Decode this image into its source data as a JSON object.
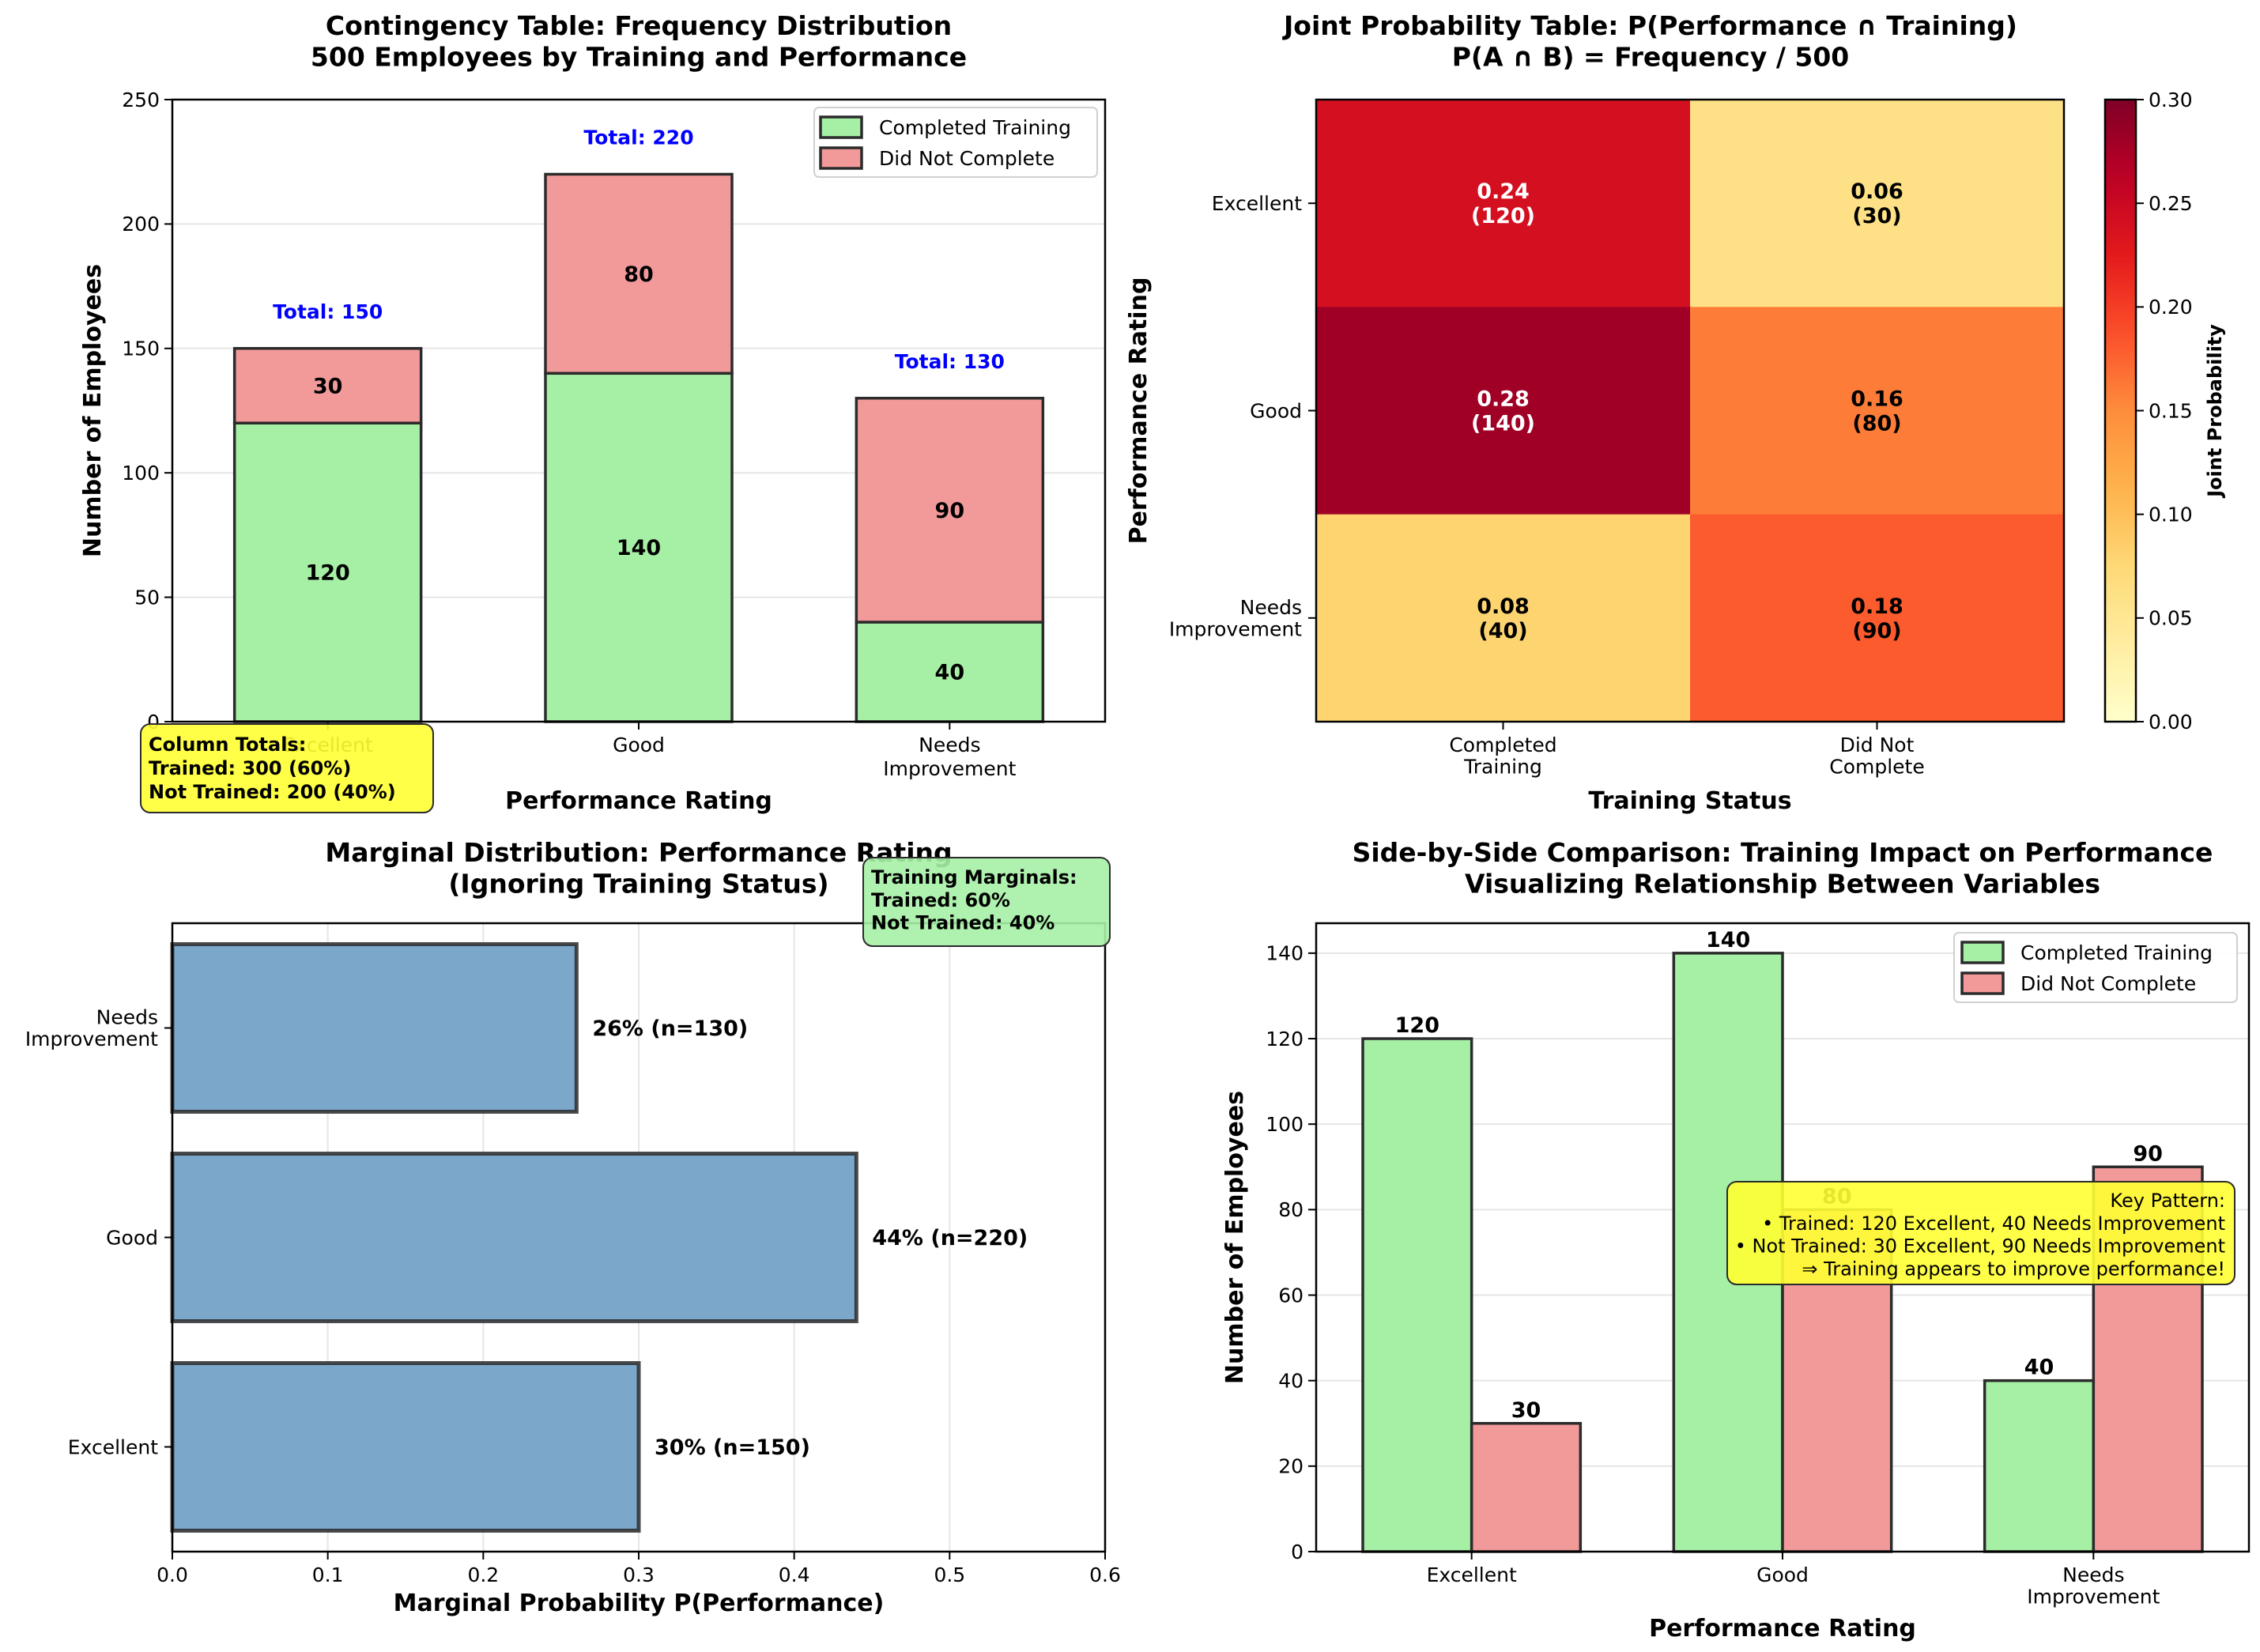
{
  "colors": {
    "trained": "#a6f0a6",
    "not_trained": "#f29a9a",
    "marginal_bar": "#7ba7cb",
    "edge": "#2b2b2b",
    "total_text": "#0000ff",
    "yellow_box": "#ffff33",
    "green_box": "#a6f0a6",
    "grid": "#e6e6e6"
  },
  "chart_data": [
    {
      "id": "contingency",
      "type": "bar",
      "stacked": true,
      "title": "Contingency Table: Frequency Distribution\n500 Employees by Training and Performance",
      "xlabel": "Performance Rating",
      "ylabel": "Number of Employees",
      "categories": [
        "Excellent",
        "Good",
        "Needs\nImprovement"
      ],
      "series": [
        {
          "name": "Completed Training",
          "values": [
            120,
            140,
            40
          ]
        },
        {
          "name": "Did Not Complete",
          "values": [
            30,
            80,
            90
          ]
        }
      ],
      "totals": [
        150,
        220,
        130
      ],
      "total_labels": [
        "Total: 150",
        "Total: 220",
        "Total: 130"
      ],
      "ylim": [
        0,
        250
      ],
      "yticks": [
        0,
        50,
        100,
        150,
        200,
        250
      ],
      "grid": "y",
      "legend": "top-right",
      "annotation": "Column Totals:\nTrained: 300 (60%)\nNot Trained: 200 (40%)"
    },
    {
      "id": "joint",
      "type": "heatmap",
      "title": "Joint Probability Table: P(Performance ∩ Training)\nP(A ∩ B) = Frequency / 500",
      "xlabel": "Training Status",
      "ylabel": "Performance Rating",
      "x_categories": [
        "Completed\nTraining",
        "Did Not\nComplete"
      ],
      "y_categories": [
        "Excellent",
        "Good",
        "Needs\nImprovement"
      ],
      "values": [
        [
          0.24,
          0.06
        ],
        [
          0.28,
          0.16
        ],
        [
          0.08,
          0.18
        ]
      ],
      "counts": [
        [
          120,
          30
        ],
        [
          140,
          80
        ],
        [
          40,
          90
        ]
      ],
      "colormap": "YlOrRd",
      "vmin": 0.0,
      "vmax": 0.3,
      "colorbar_label": "Joint Probability",
      "colorbar_ticks": [
        "0.00",
        "0.05",
        "0.10",
        "0.15",
        "0.20",
        "0.25",
        "0.30"
      ]
    },
    {
      "id": "marginal",
      "type": "bar",
      "orientation": "horizontal",
      "title": "Marginal Distribution: Performance Rating\n(Ignoring Training Status)",
      "xlabel": "Marginal Probability P(Performance)",
      "ylabel": "",
      "categories": [
        "Excellent",
        "Good",
        "Needs\nImprovement"
      ],
      "values": [
        0.3,
        0.44,
        0.26
      ],
      "value_labels": [
        "30% (n=150)",
        "44% (n=220)",
        "26% (n=130)"
      ],
      "xlim": [
        0,
        0.6
      ],
      "xticks": [
        "0.0",
        "0.1",
        "0.2",
        "0.3",
        "0.4",
        "0.5",
        "0.6"
      ],
      "grid": "x",
      "annotation": "Training Marginals:\nTrained: 60%\nNot Trained: 40%"
    },
    {
      "id": "sidebyside",
      "type": "bar",
      "grouped": true,
      "title": "Side-by-Side Comparison: Training Impact on Performance\nVisualizing Relationship Between Variables",
      "xlabel": "Performance Rating",
      "ylabel": "Number of Employees",
      "categories": [
        "Excellent",
        "Good",
        "Needs\nImprovement"
      ],
      "series": [
        {
          "name": "Completed Training",
          "values": [
            120,
            140,
            40
          ]
        },
        {
          "name": "Did Not Complete",
          "values": [
            30,
            80,
            90
          ]
        }
      ],
      "ylim": [
        0,
        147
      ],
      "yticks": [
        0,
        20,
        40,
        60,
        80,
        100,
        120,
        140
      ],
      "grid": "y",
      "legend": "top-right",
      "annotation": "Key Pattern:\n• Trained: 120 Excellent, 40 Needs Improvement\n• Not Trained: 30 Excellent, 90 Needs Improvement\n⇒ Training appears to improve performance!"
    }
  ]
}
